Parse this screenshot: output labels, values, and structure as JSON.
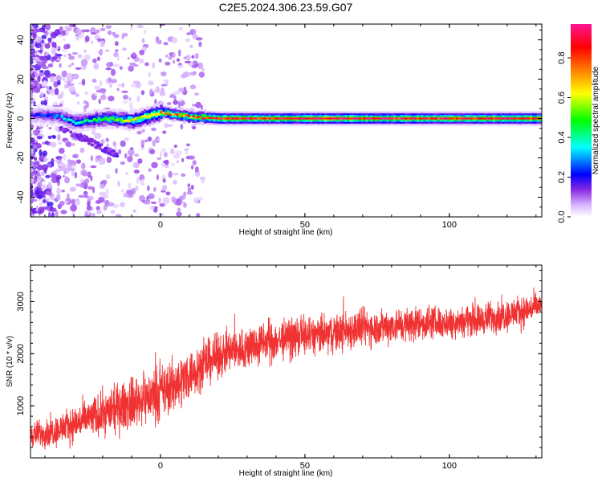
{
  "title": "C2E5.2024.306.23.59.G07",
  "chart_data": [
    {
      "type": "heatmap",
      "xlabel": "Height of straight line (km)",
      "ylabel": "Frequency (Hz)",
      "xlim": [
        -45,
        132
      ],
      "ylim": [
        -50,
        48
      ],
      "xticks": [
        0,
        50,
        100
      ],
      "yticks": [
        -40,
        -20,
        0,
        20,
        40
      ],
      "colorbar": {
        "label": "Normalized spectral amplitude",
        "range": [
          0,
          0.97
        ],
        "ticks": [
          "0.0",
          "0.2",
          "0.4",
          "0.6",
          "0.8"
        ],
        "colors": [
          "#ffffff",
          "#d9b8ff",
          "#8a2be2",
          "#0000ff",
          "#00ffff",
          "#00ff00",
          "#ffff00",
          "#ff8000",
          "#ff0000",
          "#ff1493"
        ]
      },
      "ridge": {
        "description_points_x": [
          -45,
          -35,
          -30,
          -20,
          -10,
          -5,
          0,
          5,
          10,
          20,
          40,
          60,
          80,
          100,
          132
        ],
        "frequency_hz": [
          2,
          1,
          -2,
          0,
          -1,
          1,
          3,
          2,
          1,
          0,
          0,
          0,
          0,
          0,
          0
        ],
        "amplitude": [
          0.2,
          0.3,
          0.4,
          0.5,
          0.6,
          0.7,
          0.7,
          0.8,
          0.8,
          0.9,
          0.9,
          0.95,
          0.9,
          0.9,
          0.9
        ]
      },
      "branch": {
        "x": [
          -35,
          -30,
          -25,
          -20,
          -15
        ],
        "frequency_hz": [
          -4,
          -8,
          -11,
          -15,
          -18
        ]
      }
    },
    {
      "type": "line",
      "xlabel": "Height of straight line (km)",
      "ylabel": "SNR (10 * v/v)",
      "xlim": [
        -45,
        132
      ],
      "ylim": [
        0,
        3700
      ],
      "xticks": [
        0,
        50,
        100
      ],
      "yticks": [
        1000,
        2000,
        3000
      ],
      "series": [
        {
          "color": "#f03232",
          "x": [
            -45,
            -40,
            -35,
            -30,
            -25,
            -20,
            -15,
            -10,
            -5,
            0,
            5,
            10,
            15,
            20,
            25,
            30,
            35,
            40,
            45,
            50,
            55,
            60,
            65,
            70,
            75,
            80,
            85,
            90,
            95,
            100,
            105,
            110,
            115,
            120,
            125,
            130
          ],
          "mean": [
            450,
            480,
            550,
            650,
            750,
            850,
            950,
            1050,
            1150,
            1250,
            1400,
            1600,
            1800,
            1950,
            2050,
            2100,
            2200,
            2250,
            2300,
            2350,
            2350,
            2400,
            2450,
            2500,
            2500,
            2550,
            2550,
            2600,
            2600,
            2600,
            2650,
            2650,
            2700,
            2750,
            2800,
            2900
          ],
          "spread": [
            350,
            400,
            450,
            500,
            550,
            600,
            650,
            700,
            700,
            750,
            750,
            700,
            650,
            600,
            600,
            600,
            600,
            600,
            550,
            550,
            550,
            550,
            550,
            550,
            500,
            500,
            500,
            500,
            450,
            450,
            450,
            450,
            450,
            450,
            450,
            400
          ]
        }
      ]
    }
  ]
}
